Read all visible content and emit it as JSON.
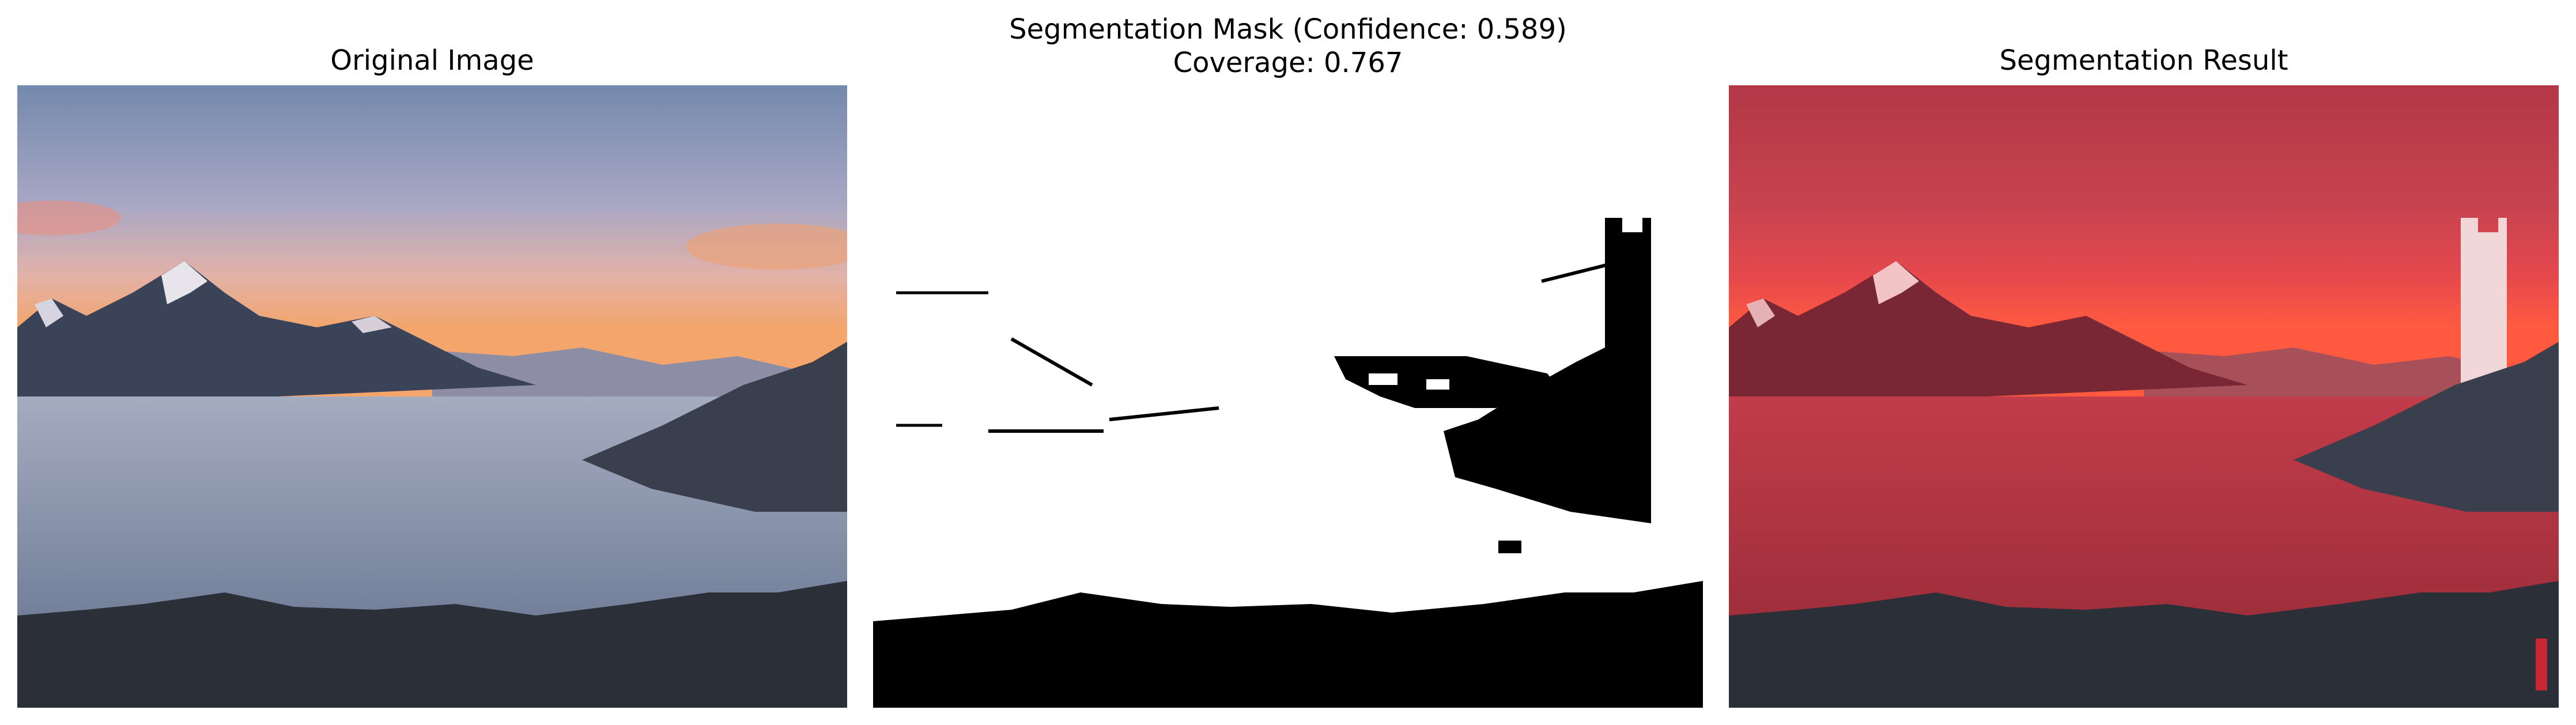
{
  "figure": {
    "titles": {
      "original": "Original Image",
      "mask_line1": "Segmentation Mask (Confidence: 0.589)",
      "mask_line2": "Coverage: 0.767",
      "result": "Segmentation Result"
    },
    "confidence": 0.589,
    "coverage": 0.767,
    "colors": {
      "sky_top": "#7f93b5",
      "sky_mid": "#c6a9b8",
      "sunset": "#f4a26c",
      "clouds": "#8c97ad",
      "rock": "#2b2f37",
      "mask_fg": "#000000",
      "mask_bg": "#ffffff",
      "overlay": "#d9202c"
    },
    "icons": [
      "mountain-photo",
      "binary-mask",
      "red-overlay-photo"
    ]
  }
}
